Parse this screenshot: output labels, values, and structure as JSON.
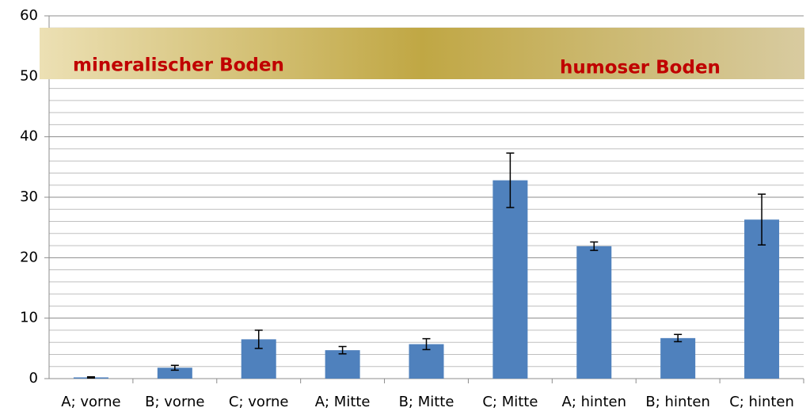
{
  "chart_data": {
    "type": "bar",
    "categories": [
      "A; vorne",
      "B; vorne",
      "C; vorne",
      "A; Mitte",
      "B; Mitte",
      "C; Mitte",
      "A; hinten",
      "B; hinten",
      "C; hinten"
    ],
    "values": [
      0.2,
      1.8,
      6.5,
      4.7,
      5.7,
      32.8,
      21.9,
      6.7,
      26.3
    ],
    "errors": [
      0.1,
      0.4,
      1.5,
      0.6,
      0.9,
      4.5,
      0.7,
      0.6,
      4.2
    ],
    "color": "#4f81bd",
    "ylim": [
      0,
      60
    ],
    "yticks": [
      0,
      10,
      20,
      30,
      40,
      50,
      60
    ],
    "minor_yticks": [
      2,
      4,
      6,
      8,
      12,
      14,
      16,
      18,
      22,
      24,
      26,
      28,
      32,
      34,
      36,
      38,
      42,
      44,
      46,
      48,
      52,
      54,
      56,
      58
    ],
    "grid": true,
    "annotations": [
      "mineralischer Boden",
      "humoser Boden"
    ]
  }
}
